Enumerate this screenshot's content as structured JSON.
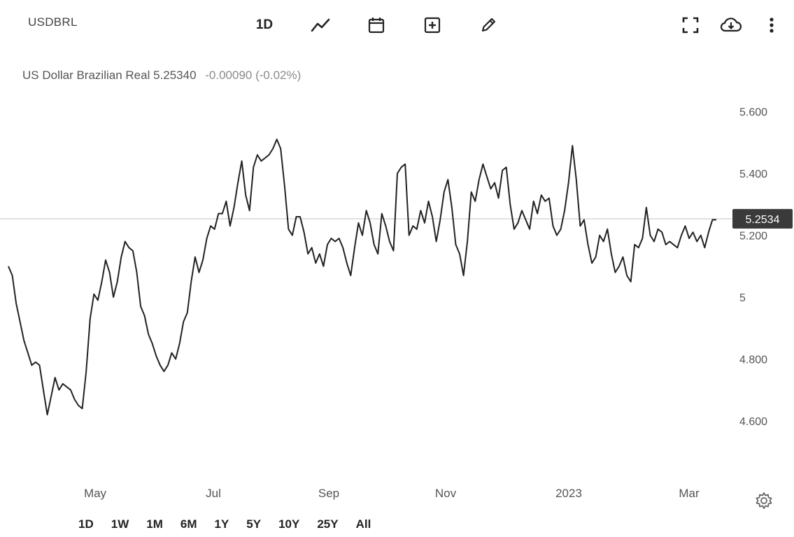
{
  "header": {
    "symbol": "USDBRL",
    "interval_label": "1D",
    "tools": [
      {
        "name": "line-chart-icon"
      },
      {
        "name": "calendar-icon"
      },
      {
        "name": "add-indicator-icon"
      },
      {
        "name": "draw-pencil-icon"
      }
    ],
    "right_tools": [
      {
        "name": "fullscreen-icon"
      },
      {
        "name": "cloud-download-icon"
      },
      {
        "name": "more-vertical-icon"
      }
    ]
  },
  "quote": {
    "name": "US Dollar Brazilian Real",
    "price": "5.25340",
    "change": "-0.00090 (-0.02%)",
    "change_color": "#8a8a8a"
  },
  "last_price_label": "5.2534",
  "ranges": [
    "1D",
    "1W",
    "1M",
    "6M",
    "1Y",
    "5Y",
    "10Y",
    "25Y",
    "All"
  ],
  "settings_icon": "gear-icon",
  "chart_data": {
    "type": "line",
    "title": "",
    "xlabel": "",
    "ylabel": "",
    "x_tick_labels": [
      "May",
      "Jul",
      "Sep",
      "Nov",
      "2023",
      "Mar"
    ],
    "y_tick_labels": [
      "5.600",
      "5.400",
      "5.200",
      "5",
      "4.800",
      "4.600"
    ],
    "y_ticks": [
      5.6,
      5.4,
      5.2,
      5.0,
      4.8,
      4.6
    ],
    "ylim": [
      4.46,
      5.66
    ],
    "grid": false,
    "line_color": "#222222",
    "last_value": 5.2534,
    "series": [
      {
        "values": [
          5.1,
          5.07,
          4.98,
          4.92,
          4.86,
          4.82,
          4.78,
          4.79,
          4.78,
          4.7,
          4.62,
          4.68,
          4.74,
          4.7,
          4.72,
          4.71,
          4.7,
          4.67,
          4.65,
          4.64,
          4.76,
          4.93,
          5.01,
          4.99,
          5.05,
          5.12,
          5.08,
          5.0,
          5.05,
          5.13,
          5.18,
          5.16,
          5.15,
          5.08,
          4.97,
          4.94,
          4.88,
          4.85,
          4.81,
          4.78,
          4.76,
          4.78,
          4.82,
          4.8,
          4.85,
          4.92,
          4.95,
          5.05,
          5.13,
          5.08,
          5.12,
          5.19,
          5.23,
          5.22,
          5.27,
          5.27,
          5.31,
          5.23,
          5.29,
          5.37,
          5.44,
          5.33,
          5.28,
          5.42,
          5.46,
          5.44,
          5.45,
          5.46,
          5.48,
          5.51,
          5.48,
          5.36,
          5.22,
          5.2,
          5.26,
          5.26,
          5.21,
          5.14,
          5.16,
          5.11,
          5.14,
          5.1,
          5.17,
          5.19,
          5.18,
          5.19,
          5.16,
          5.11,
          5.07,
          5.16,
          5.24,
          5.2,
          5.28,
          5.24,
          5.17,
          5.14,
          5.27,
          5.23,
          5.18,
          5.15,
          5.4,
          5.42,
          5.43,
          5.2,
          5.23,
          5.22,
          5.28,
          5.24,
          5.31,
          5.26,
          5.18,
          5.25,
          5.34,
          5.38,
          5.29,
          5.17,
          5.14,
          5.07,
          5.18,
          5.34,
          5.31,
          5.38,
          5.43,
          5.39,
          5.35,
          5.37,
          5.32,
          5.41,
          5.42,
          5.3,
          5.22,
          5.24,
          5.28,
          5.25,
          5.22,
          5.31,
          5.27,
          5.33,
          5.31,
          5.32,
          5.23,
          5.2,
          5.22,
          5.28,
          5.37,
          5.49,
          5.38,
          5.23,
          5.25,
          5.17,
          5.11,
          5.13,
          5.2,
          5.18,
          5.22,
          5.14,
          5.08,
          5.1,
          5.13,
          5.07,
          5.05,
          5.17,
          5.16,
          5.19,
          5.29,
          5.2,
          5.18,
          5.22,
          5.21,
          5.17,
          5.18,
          5.17,
          5.16,
          5.2,
          5.23,
          5.19,
          5.21,
          5.18,
          5.2,
          5.16,
          5.21,
          5.25,
          5.25
        ]
      }
    ]
  }
}
